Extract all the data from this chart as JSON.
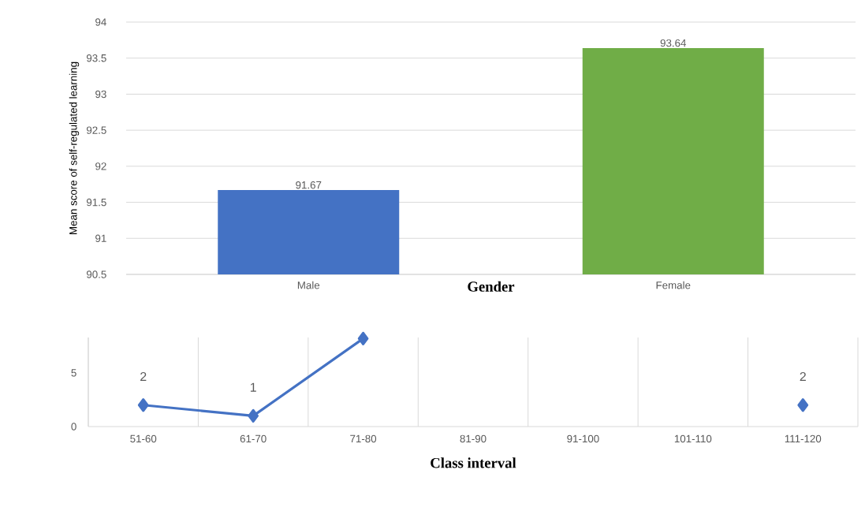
{
  "chart_data": [
    {
      "type": "bar",
      "xlabel": "Gender",
      "ylabel": "Mean score of self-regulated learning",
      "categories": [
        "Male",
        "Female"
      ],
      "values": [
        91.67,
        93.64
      ],
      "colors": [
        "#4472c4",
        "#70ad47"
      ],
      "ylim": [
        90.5,
        94
      ],
      "yticks": [
        90.5,
        91,
        91.5,
        92,
        92.5,
        93,
        93.5,
        94
      ],
      "grid": "y",
      "data_labels": true
    },
    {
      "type": "line",
      "xlabel": "Class interval",
      "categories": [
        "51-60",
        "61-70",
        "71-80",
        "81-90",
        "91-100",
        "101-110",
        "111-120"
      ],
      "values": [
        2,
        1,
        8.2,
        null,
        null,
        null,
        2
      ],
      "value_labels": [
        "2",
        "1",
        null,
        null,
        null,
        null,
        "2"
      ],
      "color": "#4472c4",
      "ylim": [
        0,
        8.3
      ],
      "yticks": [
        0,
        5
      ],
      "grid": "x",
      "marker": "diamond",
      "line_style": "solid"
    }
  ]
}
